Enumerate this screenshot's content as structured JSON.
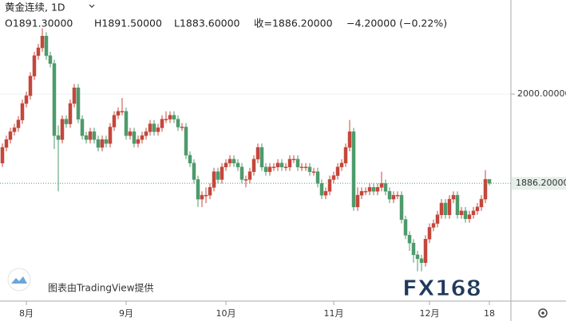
{
  "header": {
    "symbol": "黄金连续, 1D",
    "ohlc_labels": [
      "O1891.30000",
      "H1891.50000",
      "L1883.60000",
      "收=1886.20000",
      "−4.20000 (−0.22%)"
    ]
  },
  "watermarks": {
    "credit": "图表由TradingView提供",
    "logo": "FX168"
  },
  "chart_data": {
    "type": "candlestick",
    "categories": [
      null,
      null,
      null,
      null,
      null,
      null,
      "8月",
      null,
      null,
      null,
      null,
      null,
      null,
      null,
      null,
      null,
      null,
      null,
      null,
      null,
      null,
      null,
      null,
      null,
      null,
      null,
      null,
      null,
      null,
      null,
      null,
      "9月",
      null,
      null,
      null,
      null,
      null,
      null,
      null,
      null,
      null,
      null,
      null,
      null,
      null,
      null,
      null,
      null,
      null,
      null,
      null,
      null,
      null,
      null,
      null,
      null,
      "10月",
      null,
      null,
      null,
      null,
      null,
      null,
      null,
      null,
      null,
      null,
      null,
      null,
      null,
      null,
      null,
      null,
      null,
      null,
      null,
      null,
      null,
      null,
      null,
      null,
      null,
      null,
      "11月",
      null,
      null,
      null,
      null,
      null,
      null,
      null,
      null,
      null,
      null,
      null,
      null,
      null,
      null,
      null,
      null,
      null,
      null,
      null,
      null,
      null,
      null,
      null,
      "12月",
      null,
      null,
      null,
      null,
      null,
      null,
      null,
      null,
      null,
      null,
      null,
      null,
      null,
      null,
      "18"
    ],
    "open": [
      1912,
      1932,
      1942,
      1952,
      1957,
      1967,
      1988,
      1998,
      2023,
      2049,
      2059,
      2074,
      2049,
      2039,
      1947,
      1942,
      1968,
      1962,
      1988,
      2008,
      1968,
      1947,
      1942,
      1952,
      1942,
      1932,
      1942,
      1937,
      1958,
      1973,
      1978,
      1978,
      1947,
      1952,
      1937,
      1942,
      1947,
      1952,
      1962,
      1952,
      1957,
      1968,
      1968,
      1973,
      1968,
      1958,
      1958,
      1922,
      1912,
      1891,
      1866,
      1871,
      1871,
      1881,
      1901,
      1891,
      1907,
      1912,
      1917,
      1912,
      1907,
      1891,
      1891,
      1901,
      1917,
      1932,
      1907,
      1901,
      1907,
      1907,
      1912,
      1907,
      1907,
      1917,
      1917,
      1907,
      1907,
      1907,
      1901,
      1901,
      1886,
      1871,
      1876,
      1891,
      1896,
      1907,
      1912,
      1932,
      1952,
      1856,
      1871,
      1876,
      1876,
      1881,
      1876,
      1881,
      1886,
      1876,
      1866,
      1871,
      1871,
      1840,
      1820,
      1810,
      1795,
      1790,
      1785,
      1815,
      1830,
      1835,
      1846,
      1861,
      1846,
      1866,
      1871,
      1846,
      1851,
      1841,
      1846,
      1851,
      1856,
      1866,
      1891.3
    ],
    "high": [
      1937,
      1947,
      1957,
      1962,
      1972,
      1993,
      2003,
      2028,
      2054,
      2064,
      2084,
      2079,
      2054,
      2044,
      1960,
      1973,
      1973,
      1993,
      2013,
      2013,
      1973,
      1952,
      1957,
      1957,
      1947,
      1947,
      1947,
      1963,
      1978,
      1983,
      1995,
      1983,
      1957,
      1957,
      1947,
      1952,
      1957,
      1967,
      1967,
      1962,
      1973,
      1978,
      1978,
      1978,
      1973,
      1963,
      1963,
      1927,
      1917,
      1896,
      1876,
      1881,
      1886,
      1906,
      1906,
      1912,
      1917,
      1922,
      1922,
      1917,
      1912,
      1896,
      1906,
      1922,
      1937,
      1937,
      1912,
      1912,
      1912,
      1917,
      1917,
      1912,
      1922,
      1922,
      1922,
      1912,
      1912,
      1912,
      1906,
      1906,
      1891,
      1881,
      1896,
      1901,
      1912,
      1917,
      1937,
      1967,
      1957,
      1881,
      1881,
      1881,
      1886,
      1886,
      1886,
      1901,
      1891,
      1881,
      1876,
      1876,
      1876,
      1845,
      1825,
      1815,
      1800,
      1795,
      1820,
      1835,
      1840,
      1851,
      1866,
      1866,
      1871,
      1876,
      1876,
      1856,
      1856,
      1851,
      1856,
      1861,
      1871,
      1903,
      1891.5
    ],
    "low": [
      1907,
      1927,
      1937,
      1947,
      1952,
      1962,
      1983,
      1993,
      2018,
      2044,
      2054,
      2044,
      2034,
      1930,
      1876,
      1937,
      1957,
      1957,
      1983,
      1963,
      1942,
      1937,
      1937,
      1937,
      1927,
      1927,
      1932,
      1932,
      1953,
      1968,
      1973,
      1942,
      1942,
      1932,
      1932,
      1937,
      1942,
      1947,
      1947,
      1947,
      1952,
      1963,
      1963,
      1963,
      1953,
      1953,
      1917,
      1907,
      1886,
      1856,
      1856,
      1861,
      1866,
      1876,
      1886,
      1886,
      1902,
      1907,
      1907,
      1902,
      1886,
      1881,
      1886,
      1896,
      1912,
      1902,
      1896,
      1896,
      1902,
      1902,
      1902,
      1902,
      1902,
      1912,
      1902,
      1902,
      1902,
      1896,
      1896,
      1881,
      1866,
      1866,
      1871,
      1886,
      1891,
      1902,
      1907,
      1927,
      1851,
      1851,
      1866,
      1871,
      1871,
      1871,
      1871,
      1876,
      1871,
      1861,
      1861,
      1866,
      1835,
      1815,
      1800,
      1785,
      1774,
      1774,
      1780,
      1810,
      1825,
      1830,
      1841,
      1841,
      1841,
      1861,
      1841,
      1841,
      1836,
      1836,
      1841,
      1846,
      1851,
      1861,
      1883.6
    ],
    "close": [
      1932,
      1942,
      1952,
      1957,
      1967,
      1988,
      1998,
      2023,
      2049,
      2059,
      2074,
      2049,
      2039,
      1947,
      1942,
      1968,
      1962,
      1988,
      2008,
      1968,
      1947,
      1942,
      1952,
      1942,
      1932,
      1942,
      1937,
      1958,
      1973,
      1978,
      1978,
      1947,
      1952,
      1937,
      1942,
      1947,
      1952,
      1962,
      1952,
      1957,
      1968,
      1968,
      1973,
      1968,
      1958,
      1958,
      1922,
      1912,
      1891,
      1866,
      1871,
      1871,
      1881,
      1901,
      1891,
      1907,
      1912,
      1917,
      1912,
      1907,
      1891,
      1891,
      1901,
      1917,
      1932,
      1907,
      1901,
      1907,
      1907,
      1912,
      1907,
      1907,
      1917,
      1917,
      1907,
      1907,
      1907,
      1901,
      1901,
      1886,
      1871,
      1876,
      1891,
      1896,
      1907,
      1912,
      1932,
      1952,
      1856,
      1871,
      1876,
      1876,
      1881,
      1876,
      1881,
      1886,
      1876,
      1866,
      1871,
      1871,
      1840,
      1820,
      1810,
      1795,
      1790,
      1785,
      1815,
      1830,
      1835,
      1846,
      1861,
      1846,
      1866,
      1871,
      1846,
      1851,
      1841,
      1846,
      1851,
      1856,
      1866,
      1891.3,
      1886.2
    ],
    "up_color": "#c4473b",
    "down_color": "#4e9a6c",
    "ylim": [
      1736,
      2120
    ],
    "yticks": [
      {
        "value": 2000,
        "label": "2000.00000"
      }
    ],
    "last_price": {
      "value": 1886.2,
      "label": "1886.20000"
    },
    "grid": true
  }
}
